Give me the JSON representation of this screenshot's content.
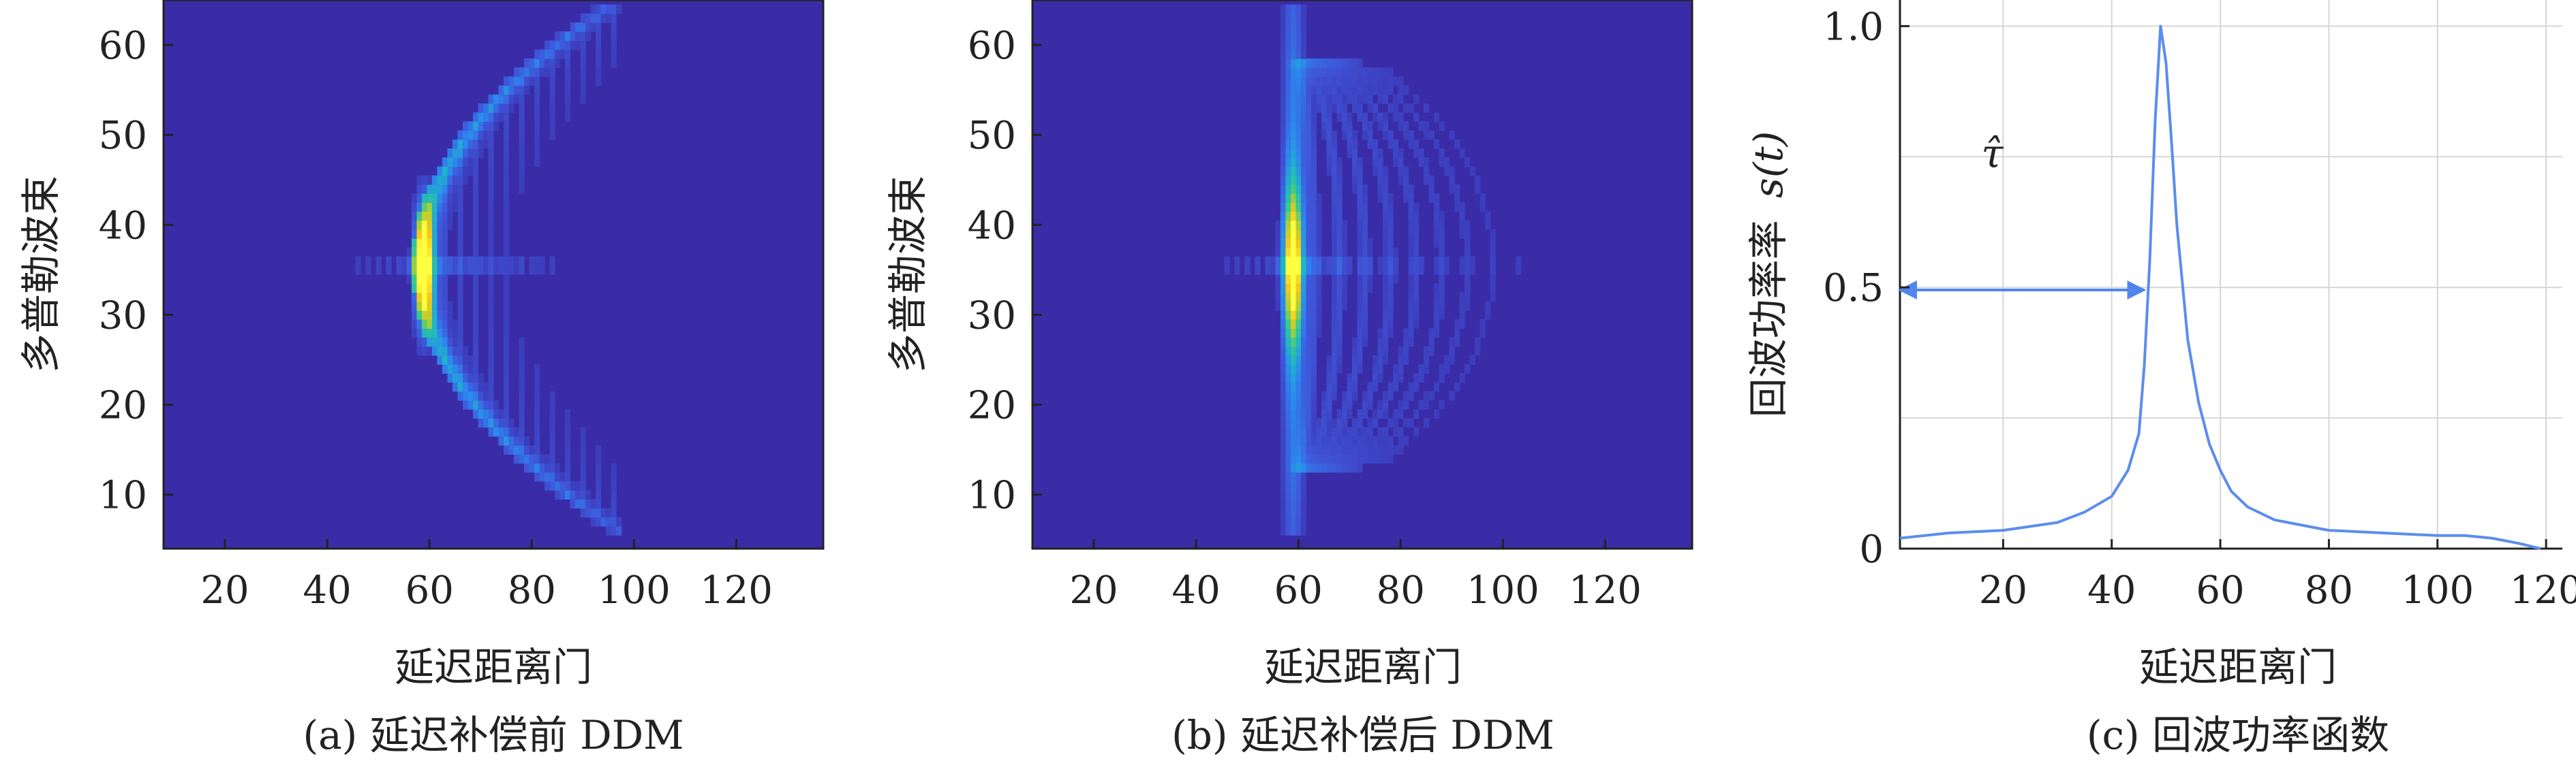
{
  "colors": {
    "heatmap_bg": "#3a2ca6",
    "heatmap_ramp": [
      "#3a2ca6",
      "#3f55d8",
      "#2d86ef",
      "#1fb4c8",
      "#38c98c",
      "#a7d13a",
      "#f2c81a",
      "#ffff40"
    ],
    "line": "#5b8def",
    "arrow": "#4f86ec",
    "grid": "#d6d6d6",
    "axis": "#222222"
  },
  "chart_data": [
    {
      "type": "heatmap",
      "caption": "(a) 延迟补偿前 DDM",
      "xlabel": "延迟距离门",
      "ylabel": "多普勒波束",
      "xlim": [
        8,
        137
      ],
      "ylim": [
        4,
        65
      ],
      "xticks": [
        20,
        40,
        60,
        80,
        100,
        120
      ],
      "yticks": [
        10,
        20,
        30,
        40,
        50,
        60
      ],
      "center_doppler": 35.5,
      "leading_edge": {
        "delay_at_center": 58,
        "delay_at_extremes": 96,
        "doppler_extremes": [
          6,
          64
        ]
      },
      "peak": {
        "delay": 59,
        "doppler": 35.5,
        "value": 1.0
      }
    },
    {
      "type": "heatmap",
      "caption": "(b) 延迟补偿后 DDM",
      "xlabel": "延迟距离门",
      "ylabel": "多普勒波束",
      "xlim": [
        8,
        137
      ],
      "ylim": [
        4,
        65
      ],
      "xticks": [
        20,
        40,
        60,
        80,
        100,
        120
      ],
      "yticks": [
        10,
        20,
        30,
        40,
        50,
        60
      ],
      "center_doppler": 35.5,
      "compensated_delay": 59,
      "arc_delays": [
        63,
        68,
        73,
        78,
        83,
        88,
        93,
        98,
        103,
        108
      ],
      "peak": {
        "delay": 59,
        "doppler": 35.5,
        "value": 1.0
      }
    },
    {
      "type": "line",
      "caption": "(c) 回波功率函数",
      "xlabel": "延迟距离门",
      "ylabel_text": "回波功率率",
      "ylabel_var": "s(t)",
      "xlim": [
        1,
        123
      ],
      "ylim": [
        0,
        1.05
      ],
      "xticks": [
        20,
        40,
        60,
        80,
        100,
        120
      ],
      "yticks": [
        0,
        0.5,
        1.0
      ],
      "ytick_labels": [
        "0",
        "0.5",
        "1.0"
      ],
      "grid": true,
      "series": [
        {
          "x": [
            1,
            10,
            20,
            30,
            35,
            40,
            43,
            45,
            46,
            47,
            48,
            49,
            50,
            51,
            52,
            54,
            56,
            58,
            60,
            62,
            65,
            70,
            75,
            80,
            90,
            100,
            105,
            110,
            115,
            119
          ],
          "y": [
            0.02,
            0.03,
            0.035,
            0.05,
            0.07,
            0.1,
            0.15,
            0.22,
            0.35,
            0.55,
            0.82,
            1.0,
            0.93,
            0.78,
            0.62,
            0.4,
            0.28,
            0.2,
            0.15,
            0.11,
            0.08,
            0.055,
            0.045,
            0.035,
            0.03,
            0.025,
            0.025,
            0.02,
            0.01,
            0.0
          ]
        }
      ],
      "annotation": {
        "label": "τ̂",
        "arrow_from": {
          "x": 1,
          "y": 0.495
        },
        "arrow_to": {
          "x": 46,
          "y": 0.495
        },
        "label_at": {
          "x": 18,
          "y": 0.73
        }
      }
    }
  ]
}
